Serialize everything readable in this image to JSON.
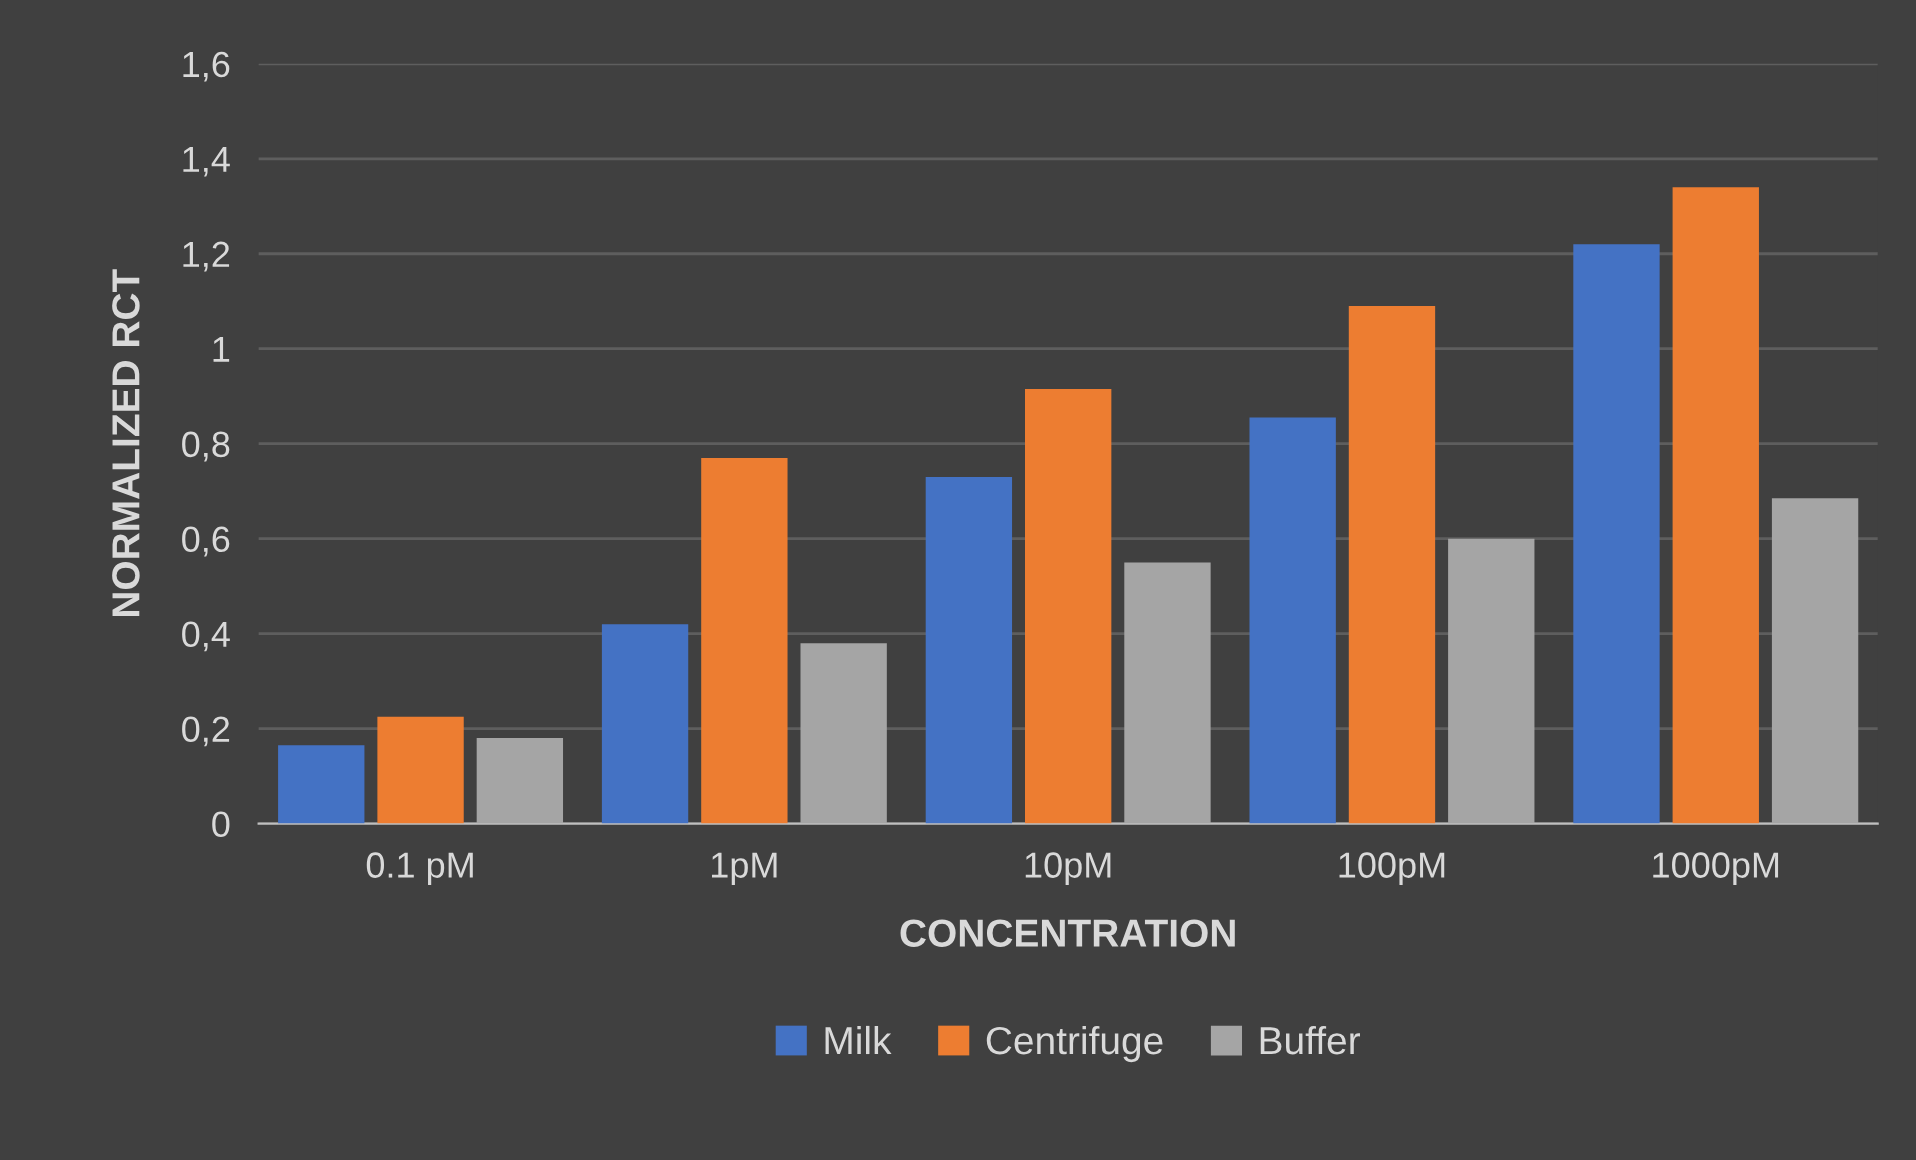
{
  "chart_data": {
    "type": "bar",
    "xlabel": "CONCENTRATION",
    "ylabel": "NORMALIZED RCT",
    "categories": [
      "0.1 pM",
      "1pM",
      "10pM",
      "100pM",
      "1000pM"
    ],
    "series": [
      {
        "name": "Milk",
        "color": "#4472c4",
        "values": [
          0.165,
          0.42,
          0.73,
          0.855,
          1.22
        ]
      },
      {
        "name": "Centrifuge",
        "color": "#ed7d31",
        "values": [
          0.225,
          0.77,
          0.915,
          1.09,
          1.34
        ]
      },
      {
        "name": "Buffer",
        "color": "#a5a5a5",
        "values": [
          0.18,
          0.38,
          0.55,
          0.6,
          0.685
        ]
      }
    ],
    "ylim": [
      0,
      1.6
    ],
    "yticks": [
      0,
      {
        "value": 0.2,
        "label": "0,2"
      },
      {
        "value": 0.4,
        "label": "0,4"
      },
      {
        "value": 0.6,
        "label": "0,6"
      },
      {
        "value": 0.8,
        "label": "0,8"
      },
      1,
      {
        "value": 1.2,
        "label": "1,2"
      },
      {
        "value": 1.4,
        "label": "1,4"
      },
      {
        "value": 1.6,
        "label": "1,6"
      }
    ],
    "grid": "y",
    "legend": "bottom"
  }
}
